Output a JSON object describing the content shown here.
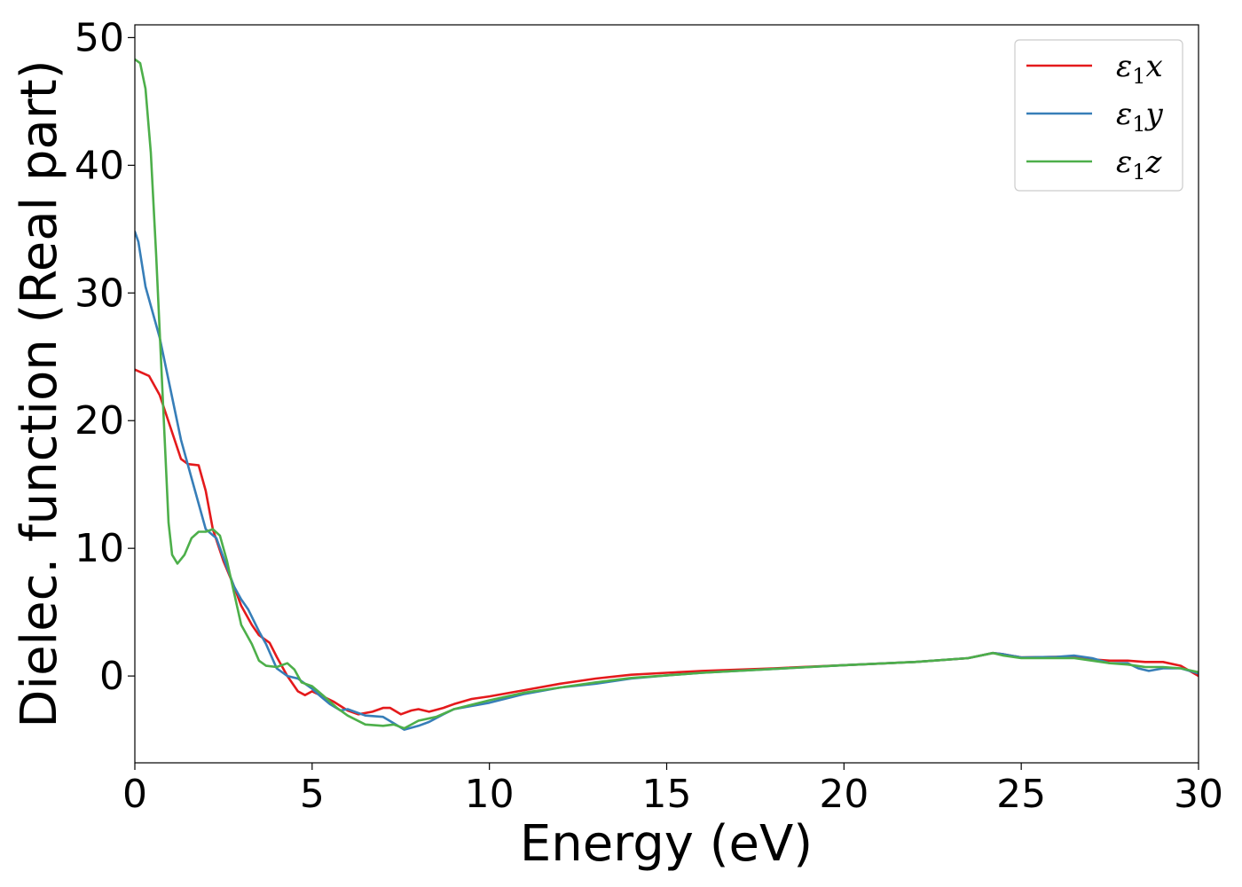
{
  "chart_data": {
    "type": "line",
    "title": "",
    "xlabel": "Energy (eV)",
    "ylabel": "Dielec. function (Real part)",
    "xlim": [
      0,
      30
    ],
    "ylim": [
      -6.8,
      51
    ],
    "xticks": [
      0,
      5,
      10,
      15,
      20,
      25,
      30
    ],
    "yticks": [
      0,
      10,
      20,
      30,
      40,
      50
    ],
    "grid": false,
    "legend_position": "top-right",
    "series": [
      {
        "name": "ε1x",
        "symbol": "ε",
        "subscript": "1",
        "axis_letter": "x",
        "color": "#e41a1c",
        "points": [
          [
            0,
            24.0
          ],
          [
            0.4,
            23.5
          ],
          [
            0.7,
            22.0
          ],
          [
            1.0,
            19.5
          ],
          [
            1.3,
            17.0
          ],
          [
            1.5,
            16.6
          ],
          [
            1.8,
            16.5
          ],
          [
            2.0,
            14.5
          ],
          [
            2.2,
            11.5
          ],
          [
            2.5,
            9.0
          ],
          [
            2.8,
            7.0
          ],
          [
            3.0,
            5.5
          ],
          [
            3.3,
            4.0
          ],
          [
            3.5,
            3.2
          ],
          [
            3.8,
            2.6
          ],
          [
            4.0,
            1.5
          ],
          [
            4.3,
            0.0
          ],
          [
            4.6,
            -1.2
          ],
          [
            4.8,
            -1.5
          ],
          [
            5.0,
            -1.2
          ],
          [
            5.3,
            -1.6
          ],
          [
            5.6,
            -2.0
          ],
          [
            6.0,
            -2.7
          ],
          [
            6.3,
            -3.0
          ],
          [
            6.7,
            -2.8
          ],
          [
            7.0,
            -2.5
          ],
          [
            7.2,
            -2.5
          ],
          [
            7.5,
            -3.0
          ],
          [
            7.8,
            -2.7
          ],
          [
            8.0,
            -2.6
          ],
          [
            8.3,
            -2.8
          ],
          [
            8.7,
            -2.5
          ],
          [
            9.0,
            -2.2
          ],
          [
            9.5,
            -1.8
          ],
          [
            10,
            -1.6
          ],
          [
            11,
            -1.1
          ],
          [
            12,
            -0.6
          ],
          [
            13,
            -0.2
          ],
          [
            14,
            0.1
          ],
          [
            15,
            0.25
          ],
          [
            16,
            0.4
          ],
          [
            18,
            0.6
          ],
          [
            20,
            0.85
          ],
          [
            22,
            1.1
          ],
          [
            23.5,
            1.4
          ],
          [
            24.2,
            1.8
          ],
          [
            24.5,
            1.7
          ],
          [
            25,
            1.45
          ],
          [
            26,
            1.5
          ],
          [
            26.5,
            1.5
          ],
          [
            27,
            1.3
          ],
          [
            27.5,
            1.2
          ],
          [
            28,
            1.2
          ],
          [
            28.5,
            1.1
          ],
          [
            29,
            1.1
          ],
          [
            29.5,
            0.8
          ],
          [
            30,
            0.0
          ]
        ]
      },
      {
        "name": "ε1y",
        "symbol": "ε",
        "subscript": "1",
        "axis_letter": "y",
        "color": "#377eb8",
        "points": [
          [
            0,
            34.8
          ],
          [
            0.1,
            34.0
          ],
          [
            0.3,
            30.5
          ],
          [
            0.5,
            28.5
          ],
          [
            0.7,
            26.5
          ],
          [
            1.0,
            22.5
          ],
          [
            1.3,
            18.5
          ],
          [
            1.6,
            15.5
          ],
          [
            2.0,
            11.5
          ],
          [
            2.3,
            10.8
          ],
          [
            2.6,
            8.5
          ],
          [
            2.8,
            7.0
          ],
          [
            3.0,
            6.0
          ],
          [
            3.2,
            5.2
          ],
          [
            3.5,
            3.5
          ],
          [
            3.7,
            2.5
          ],
          [
            4.0,
            0.6
          ],
          [
            4.3,
            0.0
          ],
          [
            4.6,
            -0.2
          ],
          [
            4.8,
            -0.6
          ],
          [
            5.0,
            -1.0
          ],
          [
            5.2,
            -1.5
          ],
          [
            5.5,
            -2.2
          ],
          [
            5.8,
            -2.7
          ],
          [
            6.0,
            -2.6
          ],
          [
            6.5,
            -3.1
          ],
          [
            7.0,
            -3.2
          ],
          [
            7.3,
            -3.7
          ],
          [
            7.6,
            -4.2
          ],
          [
            8.0,
            -3.9
          ],
          [
            8.3,
            -3.6
          ],
          [
            8.7,
            -3.0
          ],
          [
            9.0,
            -2.6
          ],
          [
            10,
            -2.1
          ],
          [
            11,
            -1.4
          ],
          [
            12,
            -0.9
          ],
          [
            13,
            -0.6
          ],
          [
            14,
            -0.2
          ],
          [
            15,
            0.05
          ],
          [
            16,
            0.25
          ],
          [
            18,
            0.55
          ],
          [
            20,
            0.85
          ],
          [
            22,
            1.1
          ],
          [
            23.5,
            1.4
          ],
          [
            24.2,
            1.8
          ],
          [
            24.5,
            1.7
          ],
          [
            25,
            1.45
          ],
          [
            26,
            1.5
          ],
          [
            26.5,
            1.6
          ],
          [
            27,
            1.4
          ],
          [
            27.5,
            1.0
          ],
          [
            28,
            1.0
          ],
          [
            28.3,
            0.6
          ],
          [
            28.6,
            0.4
          ],
          [
            29,
            0.6
          ],
          [
            29.5,
            0.6
          ],
          [
            30,
            0.2
          ]
        ]
      },
      {
        "name": "ε1z",
        "symbol": "ε",
        "subscript": "1",
        "axis_letter": "z",
        "color": "#4daf4a",
        "points": [
          [
            0,
            48.3
          ],
          [
            0.15,
            48.0
          ],
          [
            0.3,
            46.0
          ],
          [
            0.45,
            41.0
          ],
          [
            0.6,
            33.0
          ],
          [
            0.75,
            24.0
          ],
          [
            0.85,
            18.0
          ],
          [
            0.95,
            12.0
          ],
          [
            1.05,
            9.5
          ],
          [
            1.2,
            8.8
          ],
          [
            1.4,
            9.5
          ],
          [
            1.6,
            10.8
          ],
          [
            1.8,
            11.3
          ],
          [
            2.0,
            11.3
          ],
          [
            2.2,
            11.5
          ],
          [
            2.4,
            11.0
          ],
          [
            2.6,
            9.0
          ],
          [
            2.8,
            6.5
          ],
          [
            3.0,
            4.0
          ],
          [
            3.3,
            2.5
          ],
          [
            3.5,
            1.2
          ],
          [
            3.7,
            0.8
          ],
          [
            4.0,
            0.7
          ],
          [
            4.3,
            1.0
          ],
          [
            4.5,
            0.5
          ],
          [
            4.7,
            -0.5
          ],
          [
            5.0,
            -0.8
          ],
          [
            5.3,
            -1.5
          ],
          [
            5.7,
            -2.5
          ],
          [
            6.0,
            -3.1
          ],
          [
            6.5,
            -3.8
          ],
          [
            7.0,
            -3.9
          ],
          [
            7.3,
            -3.8
          ],
          [
            7.6,
            -4.1
          ],
          [
            8.0,
            -3.5
          ],
          [
            8.5,
            -3.2
          ],
          [
            9.0,
            -2.6
          ],
          [
            10,
            -1.9
          ],
          [
            11,
            -1.3
          ],
          [
            12,
            -0.9
          ],
          [
            13,
            -0.5
          ],
          [
            14,
            -0.15
          ],
          [
            15,
            0.05
          ],
          [
            16,
            0.25
          ],
          [
            18,
            0.55
          ],
          [
            20,
            0.85
          ],
          [
            22,
            1.1
          ],
          [
            23.5,
            1.4
          ],
          [
            24.2,
            1.8
          ],
          [
            24.5,
            1.6
          ],
          [
            25,
            1.4
          ],
          [
            26,
            1.4
          ],
          [
            26.5,
            1.4
          ],
          [
            27,
            1.2
          ],
          [
            27.5,
            1.0
          ],
          [
            28,
            0.9
          ],
          [
            28.5,
            0.7
          ],
          [
            29,
            0.7
          ],
          [
            29.5,
            0.6
          ],
          [
            30,
            0.3
          ]
        ]
      }
    ]
  }
}
